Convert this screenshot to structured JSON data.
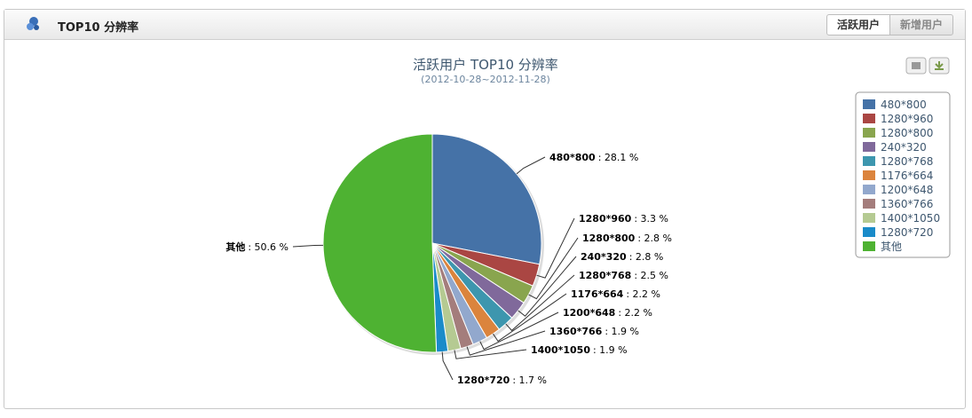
{
  "header": {
    "title": "TOP10 分辨率",
    "tabs": [
      "活跃用户",
      "新增用户"
    ]
  },
  "chart_data": {
    "type": "pie",
    "title": "活跃用户 TOP10 分辨率",
    "subtitle": "(2012-10-28~2012-11-28)",
    "categories": [
      "480*800",
      "1280*960",
      "1280*800",
      "240*320",
      "1280*768",
      "1176*664",
      "1200*648",
      "1360*766",
      "1400*1050",
      "1280*720",
      "其他"
    ],
    "values": [
      28.1,
      3.3,
      2.8,
      2.8,
      2.5,
      2.2,
      2.2,
      1.9,
      1.9,
      1.7,
      50.6
    ],
    "value_labels": [
      ": 28.1 %",
      ": 3.3 %",
      ": 2.8 %",
      ": 2.8 %",
      ": 2.5 %",
      ": 2.2 %",
      ": 2.2 %",
      ": 1.9 %",
      ": 1.9 %",
      ": 1.7 %",
      ": 50.6 %"
    ],
    "colors": [
      "#4572a7",
      "#aa4643",
      "#89a54e",
      "#80699b",
      "#3d96ae",
      "#db843d",
      "#92a8cd",
      "#a47d7c",
      "#b5ca92",
      "#1a8bc9",
      "#4eb232"
    ],
    "legend": "right"
  }
}
